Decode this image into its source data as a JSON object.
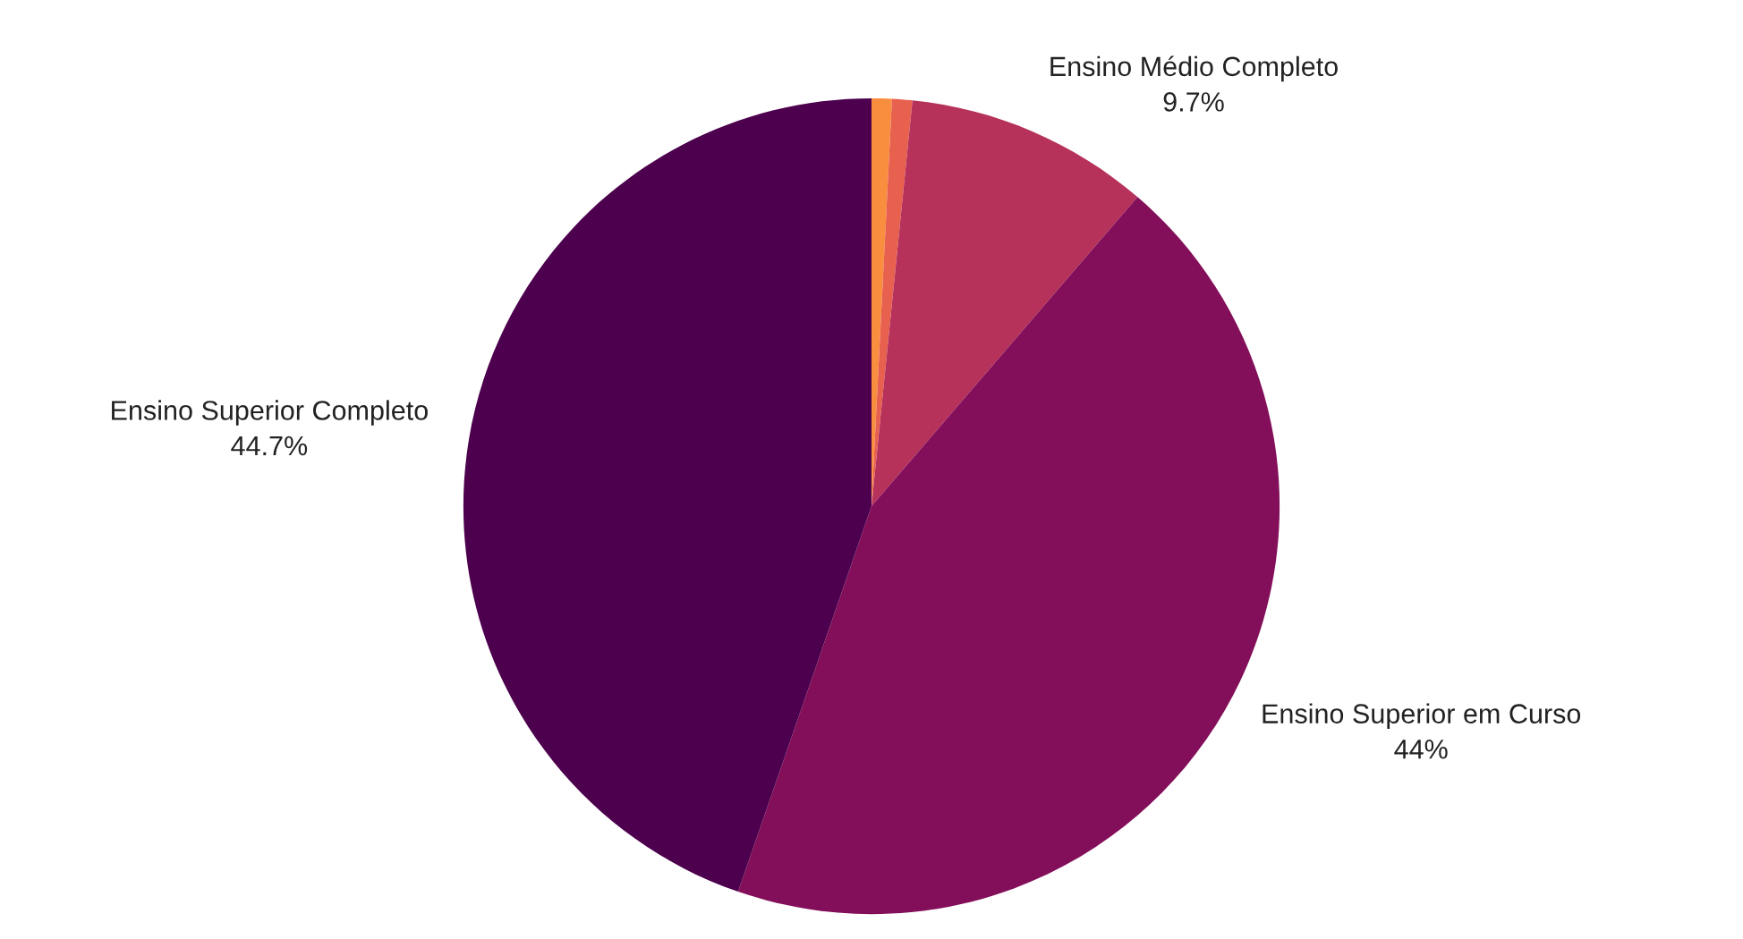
{
  "chart_data": {
    "type": "pie",
    "categories": [
      null,
      null,
      "Ensino Médio Completo",
      "Ensino Superior em Curso",
      "Ensino Superior Completo"
    ],
    "values": [
      0.8,
      0.8,
      9.7,
      44,
      44.7
    ],
    "value_labels": [
      null,
      null,
      "9.7%",
      "44%",
      "44.7%"
    ],
    "colors": [
      "#f98e3f",
      "#e8614f",
      "#b7325a",
      "#830e5a",
      "#4c004d"
    ],
    "legend": false
  }
}
